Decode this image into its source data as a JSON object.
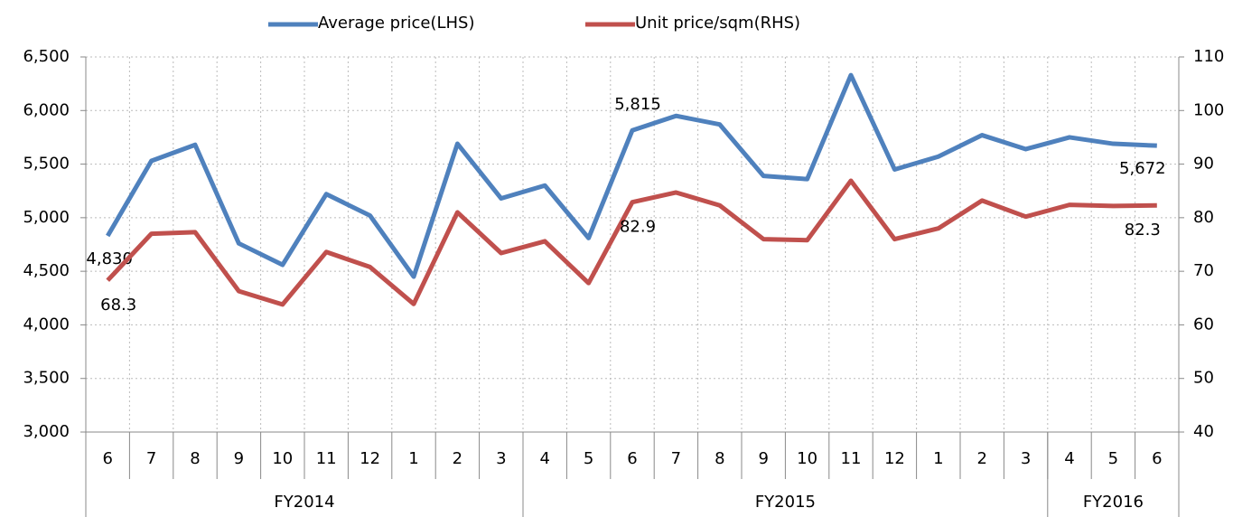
{
  "chart_data": {
    "type": "line",
    "categories": [
      "6",
      "7",
      "8",
      "9",
      "10",
      "11",
      "12",
      "1",
      "2",
      "3",
      "4",
      "5",
      "6",
      "7",
      "8",
      "9",
      "10",
      "11",
      "12",
      "1",
      "2",
      "3",
      "4",
      "5",
      "6"
    ],
    "category_groups": [
      {
        "label": "FY2014",
        "count": 10
      },
      {
        "label": "FY2015",
        "count": 12
      },
      {
        "label": "FY2016",
        "count": 3
      }
    ],
    "series": [
      {
        "name": "Average price(LHS)",
        "color": "#4f81bd",
        "axis": "y",
        "values": [
          4830,
          5530,
          5680,
          4760,
          4560,
          5220,
          5020,
          4450,
          5690,
          5180,
          5300,
          4810,
          5815,
          5950,
          5870,
          5390,
          5360,
          6330,
          5450,
          5570,
          5770,
          5640,
          5750,
          5690,
          5672
        ],
        "value_labels": [
          "4,830",
          null,
          null,
          null,
          null,
          null,
          null,
          null,
          null,
          null,
          null,
          null,
          "5,815",
          null,
          null,
          null,
          null,
          null,
          null,
          null,
          null,
          null,
          null,
          null,
          "5,672"
        ]
      },
      {
        "name": "Unit price/sqm(RHS)",
        "color": "#c0504d",
        "axis": "y2",
        "values": [
          68.3,
          77,
          77.3,
          66.3,
          63.8,
          73.6,
          70.8,
          63.9,
          81,
          73.4,
          75.6,
          67.8,
          82.9,
          84.7,
          82.3,
          76,
          75.8,
          86.9,
          76,
          78,
          83.2,
          80.2,
          82.4,
          82.2,
          82.3
        ],
        "value_labels": [
          "68.3",
          null,
          null,
          null,
          null,
          null,
          null,
          null,
          null,
          null,
          null,
          null,
          "82.9",
          null,
          null,
          null,
          null,
          null,
          null,
          null,
          null,
          null,
          null,
          null,
          "82.3"
        ]
      }
    ],
    "ylim": [
      3000,
      6500
    ],
    "yticks": [
      {
        "value": 3000,
        "label": "3,000"
      },
      {
        "value": 3500,
        "label": "3,500"
      },
      {
        "value": 4000,
        "label": "4,000"
      },
      {
        "value": 4500,
        "label": "4,500"
      },
      {
        "value": 5000,
        "label": "5,000"
      },
      {
        "value": 5500,
        "label": "5,500"
      },
      {
        "value": 6000,
        "label": "6,000"
      },
      {
        "value": 6500,
        "label": "6,500"
      }
    ],
    "y2lim": [
      40,
      110
    ],
    "y2ticks": [
      40,
      50,
      60,
      70,
      80,
      90,
      100,
      110
    ],
    "grid": true,
    "legend": "top"
  }
}
